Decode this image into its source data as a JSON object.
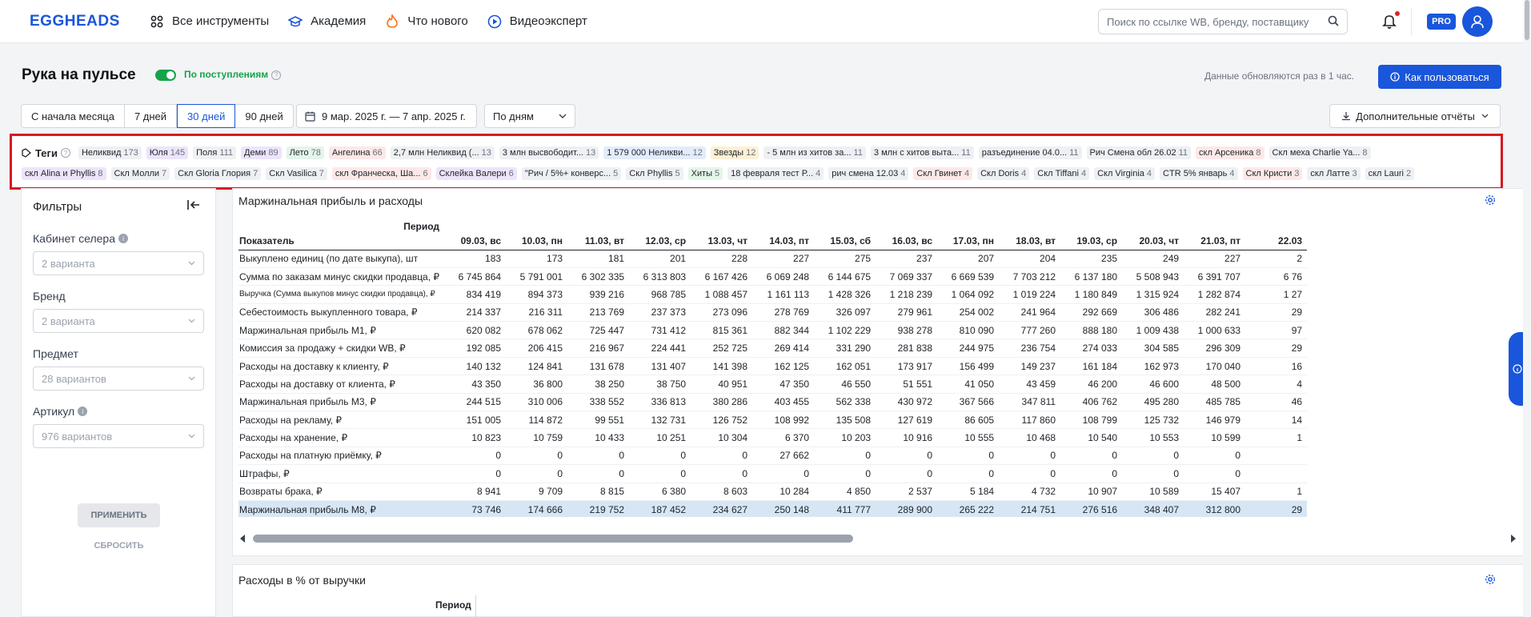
{
  "topnav": {
    "logo": "EGGHEADS",
    "links": [
      "Все инструменты",
      "Академия",
      "Что нового",
      "Видеоэксперт"
    ],
    "search_placeholder": "Поиск по ссылке WB, бренду, поставщику",
    "pro": "PRO"
  },
  "header": {
    "title": "Рука на пульсе",
    "toggle_label": "По поступлениям",
    "update_note": "Данные обновляются раз в 1 час.",
    "howto": "Как пользоваться"
  },
  "controls": {
    "periods": [
      "С начала месяца",
      "7 дней",
      "30 дней",
      "90 дней"
    ],
    "active_period": "30 дней",
    "daterange": "9 мар. 2025 г. — 7 апр. 2025 г.",
    "groupby": "По дням",
    "reports": "Дополнительные отчёты"
  },
  "tags": {
    "label": "Теги",
    "row1": [
      {
        "name": "Неликвид",
        "count": "173",
        "color": "#eef0f3"
      },
      {
        "name": "Юля",
        "count": "145",
        "color": "#ede4fb"
      },
      {
        "name": "Поля",
        "count": "111",
        "color": "#eef0f3"
      },
      {
        "name": "Деми",
        "count": "89",
        "color": "#ede4fb"
      },
      {
        "name": "Лето",
        "count": "78",
        "color": "#e4f5e9"
      },
      {
        "name": "Ангелина",
        "count": "66",
        "color": "#fde8e8"
      },
      {
        "name": "2,7 млн Неликвид (...",
        "count": "13",
        "color": "#eef0f3"
      },
      {
        "name": "3 млн высвободит...",
        "count": "13",
        "color": "#eef0f3"
      },
      {
        "name": "1 579 000 Неликви...",
        "count": "12",
        "color": "#e3ecfb"
      },
      {
        "name": "Звезды",
        "count": "12",
        "color": "#fdf0d5"
      },
      {
        "name": "- 5 млн из хитов за...",
        "count": "11",
        "color": "#eef0f3"
      },
      {
        "name": "3 млн с хитов выта...",
        "count": "11",
        "color": "#eef0f3"
      },
      {
        "name": "разъединение 04.0...",
        "count": "11",
        "color": "#eef0f3"
      },
      {
        "name": "Рич Смена обл 26.02",
        "count": "11",
        "color": "#eef0f3"
      },
      {
        "name": "скл Арсеника",
        "count": "8",
        "color": "#fde8e8"
      },
      {
        "name": "Скл меха Charlie Ya...",
        "count": "8",
        "color": "#eef0f3"
      }
    ],
    "row2": [
      {
        "name": "скл Alina и Phyllis",
        "count": "8",
        "color": "#ede4fb"
      },
      {
        "name": "Скл Молли",
        "count": "7",
        "color": "#eef0f3"
      },
      {
        "name": "Скл Gloria Глория",
        "count": "7",
        "color": "#eef0f3"
      },
      {
        "name": "Скл Vasilica",
        "count": "7",
        "color": "#eef0f3"
      },
      {
        "name": "скл Франческа, Ша...",
        "count": "6",
        "color": "#fde8e8"
      },
      {
        "name": "Склейка Валери",
        "count": "6",
        "color": "#ede4fb"
      },
      {
        "name": "\"Рич / 5%+ конверс...",
        "count": "5",
        "color": "#eef0f3"
      },
      {
        "name": "Скл Phyllis",
        "count": "5",
        "color": "#eef0f3"
      },
      {
        "name": "Хиты",
        "count": "5",
        "color": "#e4f5e9"
      },
      {
        "name": "18 февраля тест Р...",
        "count": "4",
        "color": "#eef0f3"
      },
      {
        "name": "рич смена 12.03",
        "count": "4",
        "color": "#eef0f3"
      },
      {
        "name": "Скл Гвинет",
        "count": "4",
        "color": "#fde8e8"
      },
      {
        "name": "Скл Doris",
        "count": "4",
        "color": "#eef0f3"
      },
      {
        "name": "Скл Tiffani",
        "count": "4",
        "color": "#eef0f3"
      },
      {
        "name": "Скл Virginia",
        "count": "4",
        "color": "#eef0f3"
      },
      {
        "name": "CTR 5% январь",
        "count": "4",
        "color": "#eef0f3"
      },
      {
        "name": "Скл Кристи",
        "count": "3",
        "color": "#fde8e8"
      },
      {
        "name": "скл Латте",
        "count": "3",
        "color": "#eef0f3"
      },
      {
        "name": "скл Lauri",
        "count": "2",
        "color": "#eef0f3"
      }
    ]
  },
  "filters": {
    "title": "Фильтры",
    "groups": [
      {
        "label": "Кабинет селера",
        "help": true,
        "value": "2 варианта"
      },
      {
        "label": "Бренд",
        "help": false,
        "value": "2 варианта"
      },
      {
        "label": "Предмет",
        "help": false,
        "value": "28 вариантов"
      },
      {
        "label": "Артикул",
        "help": true,
        "value": "976 вариантов"
      }
    ],
    "apply": "ПРИМЕНИТЬ",
    "reset": "СБРОСИТЬ"
  },
  "table": {
    "title": "Маржинальная прибыль и расходы",
    "period_label": "Период",
    "indicator_label": "Показатель",
    "dates": [
      "09.03, вс",
      "10.03, пн",
      "11.03, вт",
      "12.03, ср",
      "13.03, чт",
      "14.03, пт",
      "15.03, сб",
      "16.03, вс",
      "17.03, пн",
      "18.03, вт",
      "19.03, ср",
      "20.03, чт",
      "21.03, пт",
      "22.03"
    ],
    "rows": [
      {
        "label": "Выкуплено единиц (по дате выкупа), шт",
        "values": [
          "183",
          "173",
          "181",
          "201",
          "228",
          "227",
          "275",
          "237",
          "207",
          "204",
          "235",
          "249",
          "227",
          "2"
        ]
      },
      {
        "label": "Сумма по заказам минус скидки продавца, ₽",
        "values": [
          "6 745 864",
          "5 791 001",
          "6 302 335",
          "6 313 803",
          "6 167 426",
          "6 069 248",
          "6 144 675",
          "7 069 337",
          "6 669 539",
          "7 703 212",
          "6 137 180",
          "5 508 943",
          "6 391 707",
          "6 76"
        ]
      },
      {
        "label": "Выручка (Сумма выкупов минус скидки продавца), ₽",
        "small": true,
        "values": [
          "834 419",
          "894 373",
          "939 216",
          "968 785",
          "1 088 457",
          "1 161 113",
          "1 428 326",
          "1 218 239",
          "1 064 092",
          "1 019 224",
          "1 180 849",
          "1 315 924",
          "1 282 874",
          "1 27"
        ]
      },
      {
        "label": "Себестоимость выкупленного товара, ₽",
        "values": [
          "214 337",
          "216 311",
          "213 769",
          "237 373",
          "273 096",
          "278 769",
          "326 097",
          "279 961",
          "254 002",
          "241 964",
          "292 669",
          "306 486",
          "282 241",
          "29"
        ]
      },
      {
        "label": "Маржинальная прибыль М1, ₽",
        "values": [
          "620 082",
          "678 062",
          "725 447",
          "731 412",
          "815 361",
          "882 344",
          "1 102 229",
          "938 278",
          "810 090",
          "777 260",
          "888 180",
          "1 009 438",
          "1 000 633",
          "97"
        ]
      },
      {
        "label": "Комиссия за продажу + скидки WB, ₽",
        "values": [
          "192 085",
          "206 415",
          "216 967",
          "224 441",
          "252 725",
          "269 414",
          "331 290",
          "281 838",
          "244 975",
          "236 754",
          "274 033",
          "304 585",
          "296 309",
          "29"
        ]
      },
      {
        "label": "Расходы на доставку к клиенту, ₽",
        "values": [
          "140 132",
          "124 841",
          "131 678",
          "131 407",
          "141 398",
          "162 125",
          "162 051",
          "173 917",
          "156 499",
          "149 237",
          "161 184",
          "162 973",
          "170 040",
          "16"
        ]
      },
      {
        "label": "Расходы на доставку от клиента, ₽",
        "values": [
          "43 350",
          "36 800",
          "38 250",
          "38 750",
          "40 951",
          "47 350",
          "46 550",
          "51 551",
          "41 050",
          "43 459",
          "46 200",
          "46 600",
          "48 500",
          "4"
        ]
      },
      {
        "label": "Маржинальная прибыль М3, ₽",
        "values": [
          "244 515",
          "310 006",
          "338 552",
          "336 813",
          "380 286",
          "403 455",
          "562 338",
          "430 972",
          "367 566",
          "347 811",
          "406 762",
          "495 280",
          "485 785",
          "46"
        ]
      },
      {
        "label": "Расходы на рекламу, ₽",
        "values": [
          "151 005",
          "114 872",
          "99 551",
          "132 731",
          "126 752",
          "108 992",
          "135 508",
          "127 619",
          "86 605",
          "117 860",
          "108 799",
          "125 732",
          "146 979",
          "14"
        ]
      },
      {
        "label": "Расходы на хранение, ₽",
        "values": [
          "10 823",
          "10 759",
          "10 433",
          "10 251",
          "10 304",
          "6 370",
          "10 203",
          "10 916",
          "10 555",
          "10 468",
          "10 540",
          "10 553",
          "10 599",
          "1"
        ]
      },
      {
        "label": "Расходы на платную приёмку, ₽",
        "values": [
          "0",
          "0",
          "0",
          "0",
          "0",
          "27 662",
          "0",
          "0",
          "0",
          "0",
          "0",
          "0",
          "0",
          ""
        ]
      },
      {
        "label": "Штрафы, ₽",
        "values": [
          "0",
          "0",
          "0",
          "0",
          "0",
          "0",
          "0",
          "0",
          "0",
          "0",
          "0",
          "0",
          "0",
          ""
        ]
      },
      {
        "label": "Возвраты брака, ₽",
        "values": [
          "8 941",
          "9 709",
          "8 815",
          "6 380",
          "8 603",
          "10 284",
          "4 850",
          "2 537",
          "5 184",
          "4 732",
          "10 907",
          "10 589",
          "15 407",
          "1"
        ]
      },
      {
        "label": "Маржинальная прибыль М8, ₽",
        "highlight": true,
        "values": [
          "73 746",
          "174 666",
          "219 752",
          "187 452",
          "234 627",
          "250 148",
          "411 777",
          "289 900",
          "265 222",
          "214 751",
          "276 516",
          "348 407",
          "312 800",
          "29"
        ]
      }
    ]
  },
  "table2": {
    "title": "Расходы в % от выручки",
    "period_label": "Период"
  }
}
